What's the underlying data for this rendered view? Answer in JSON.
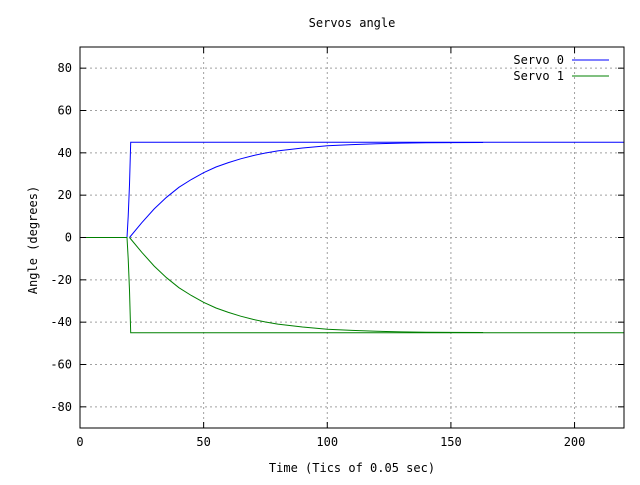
{
  "chart_data": {
    "type": "line",
    "title": "Servos angle",
    "xlabel": "Time (Tics of 0.05 sec)",
    "ylabel": "Angle (degrees)",
    "xlim": [
      0,
      220
    ],
    "ylim": [
      -90,
      90
    ],
    "xticks": [
      0,
      50,
      100,
      150,
      200
    ],
    "yticks": [
      -80,
      -60,
      -40,
      -20,
      0,
      20,
      40,
      60,
      80
    ],
    "grid": true,
    "legend_position": "top-right",
    "series": [
      {
        "name": "Servo 0",
        "color": "#0000ff",
        "lines": [
          [
            [
              0,
              0
            ],
            [
              19,
              0
            ],
            [
              19.5,
              10
            ],
            [
              20,
              25
            ],
            [
              20.5,
              45
            ],
            [
              220,
              45
            ]
          ],
          [
            [
              20,
              0
            ],
            [
              25,
              7
            ],
            [
              30,
              13.5
            ],
            [
              35,
              19
            ],
            [
              40,
              23.7
            ],
            [
              45,
              27.4
            ],
            [
              50,
              30.6
            ],
            [
              55,
              33.3
            ],
            [
              60,
              35.4
            ],
            [
              65,
              37.2
            ],
            [
              70,
              38.7
            ],
            [
              75,
              39.9
            ],
            [
              80,
              40.9
            ],
            [
              90,
              42.3
            ],
            [
              100,
              43.3
            ],
            [
              110,
              43.9
            ],
            [
              120,
              44.3
            ],
            [
              130,
              44.6
            ],
            [
              140,
              44.75
            ],
            [
              150,
              44.85
            ],
            [
              163,
              44.9
            ]
          ]
        ]
      },
      {
        "name": "Servo 1",
        "color": "#008000",
        "lines": [
          [
            [
              0,
              0
            ],
            [
              19,
              0
            ],
            [
              19.5,
              -10
            ],
            [
              20,
              -25
            ],
            [
              20.5,
              -45
            ],
            [
              220,
              -45
            ]
          ],
          [
            [
              20,
              0
            ],
            [
              25,
              -7
            ],
            [
              30,
              -13.5
            ],
            [
              35,
              -19
            ],
            [
              40,
              -23.7
            ],
            [
              45,
              -27.4
            ],
            [
              50,
              -30.6
            ],
            [
              55,
              -33.3
            ],
            [
              60,
              -35.4
            ],
            [
              65,
              -37.2
            ],
            [
              70,
              -38.7
            ],
            [
              75,
              -39.9
            ],
            [
              80,
              -40.9
            ],
            [
              90,
              -42.3
            ],
            [
              100,
              -43.3
            ],
            [
              110,
              -43.9
            ],
            [
              120,
              -44.3
            ],
            [
              130,
              -44.6
            ],
            [
              140,
              -44.75
            ],
            [
              150,
              -44.85
            ],
            [
              163,
              -44.9
            ]
          ]
        ]
      }
    ]
  }
}
